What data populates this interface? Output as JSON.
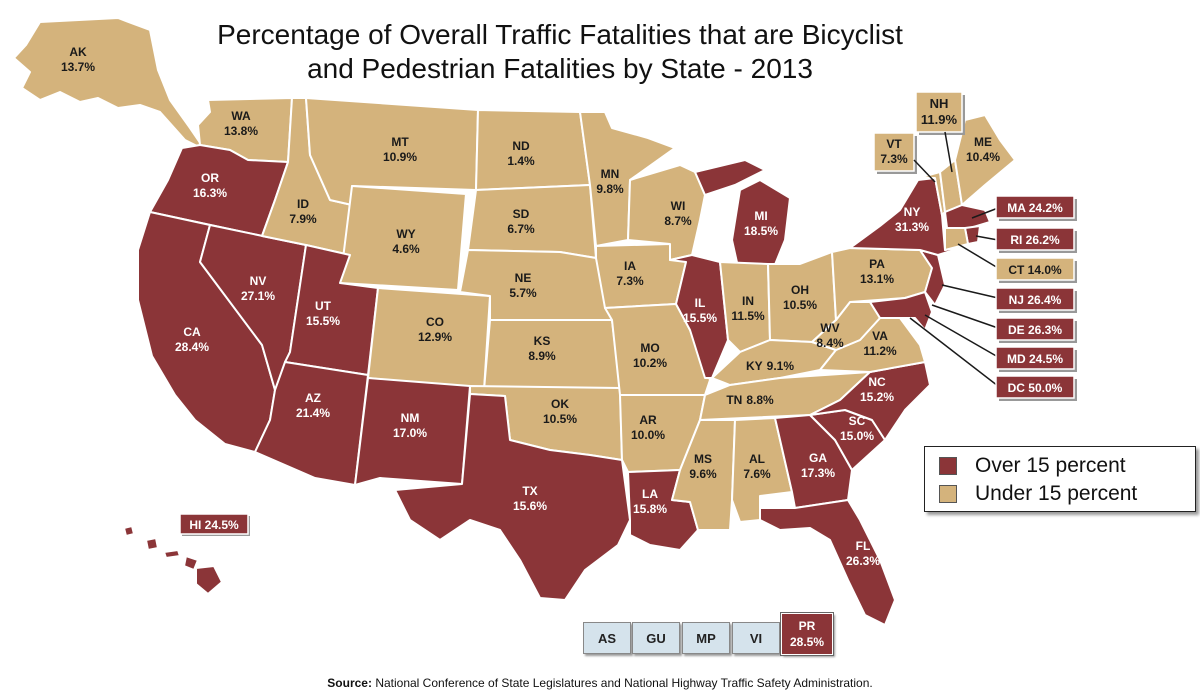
{
  "title": {
    "line1": "Percentage of Overall Traffic Fatalities that are Bicyclist",
    "line2": "and Pedestrian Fatalities by State - 2013"
  },
  "colors": {
    "over": "#8b3538",
    "under": "#d4b37c",
    "territory": "#d5e3ec"
  },
  "legend": {
    "over_label": "Over 15 percent",
    "under_label": "Under 15 percent"
  },
  "states": {
    "AK": {
      "label": "AK",
      "value": "13.7%"
    },
    "WA": {
      "label": "WA",
      "value": "13.8%"
    },
    "OR": {
      "label": "OR",
      "value": "16.3%"
    },
    "CA": {
      "label": "CA",
      "value": "28.4%"
    },
    "NV": {
      "label": "NV",
      "value": "27.1%"
    },
    "ID": {
      "label": "ID",
      "value": "7.9%"
    },
    "MT": {
      "label": "MT",
      "value": "10.9%"
    },
    "WY": {
      "label": "WY",
      "value": "4.6%"
    },
    "UT": {
      "label": "UT",
      "value": "15.5%"
    },
    "AZ": {
      "label": "AZ",
      "value": "21.4%"
    },
    "CO": {
      "label": "CO",
      "value": "12.9%"
    },
    "NM": {
      "label": "NM",
      "value": "17.0%"
    },
    "ND": {
      "label": "ND",
      "value": "1.4%"
    },
    "SD": {
      "label": "SD",
      "value": "6.7%"
    },
    "NE": {
      "label": "NE",
      "value": "5.7%"
    },
    "KS": {
      "label": "KS",
      "value": "8.9%"
    },
    "OK": {
      "label": "OK",
      "value": "10.5%"
    },
    "TX": {
      "label": "TX",
      "value": "15.6%"
    },
    "MN": {
      "label": "MN",
      "value": "9.8%"
    },
    "IA": {
      "label": "IA",
      "value": "7.3%"
    },
    "MO": {
      "label": "MO",
      "value": "10.2%"
    },
    "AR": {
      "label": "AR",
      "value": "10.0%"
    },
    "LA": {
      "label": "LA",
      "value": "15.8%"
    },
    "WI": {
      "label": "WI",
      "value": "8.7%"
    },
    "IL": {
      "label": "IL",
      "value": "15.5%"
    },
    "MI": {
      "label": "MI",
      "value": "18.5%"
    },
    "IN": {
      "label": "IN",
      "value": "11.5%"
    },
    "OH": {
      "label": "OH",
      "value": "10.5%"
    },
    "KY": {
      "label": "KY",
      "value": "9.1%"
    },
    "TN": {
      "label": "TN",
      "value": "8.8%"
    },
    "MS": {
      "label": "MS",
      "value": "9.6%"
    },
    "AL": {
      "label": "AL",
      "value": "7.6%"
    },
    "GA": {
      "label": "GA",
      "value": "17.3%"
    },
    "FL": {
      "label": "FL",
      "value": "26.3%"
    },
    "SC": {
      "label": "SC",
      "value": "15.0%"
    },
    "NC": {
      "label": "NC",
      "value": "15.2%"
    },
    "VA": {
      "label": "VA",
      "value": "11.2%"
    },
    "WV": {
      "label": "WV",
      "value": "8.4%"
    },
    "PA": {
      "label": "PA",
      "value": "13.1%"
    },
    "NY": {
      "label": "NY",
      "value": "31.3%"
    },
    "VT": {
      "label": "VT",
      "value": "7.3%"
    },
    "NH": {
      "label": "NH",
      "value": "11.9%"
    },
    "ME": {
      "label": "ME",
      "value": "10.4%"
    }
  },
  "callouts": {
    "MA": "MA 24.2%",
    "RI": "RI 26.2%",
    "CT": "CT 14.0%",
    "NJ": "NJ 26.4%",
    "DE": "DE 26.3%",
    "MD": "MD 24.5%",
    "DC": "DC 50.0%",
    "HI": "HI 24.5%"
  },
  "territories": {
    "AS": "AS",
    "GU": "GU",
    "MP": "MP",
    "VI": "VI",
    "PR_label": "PR",
    "PR_value": "28.5%"
  },
  "source": {
    "prefix": "Source:",
    "text": " National Conference of State Legislatures and National Highway Traffic Safety Administration."
  }
}
